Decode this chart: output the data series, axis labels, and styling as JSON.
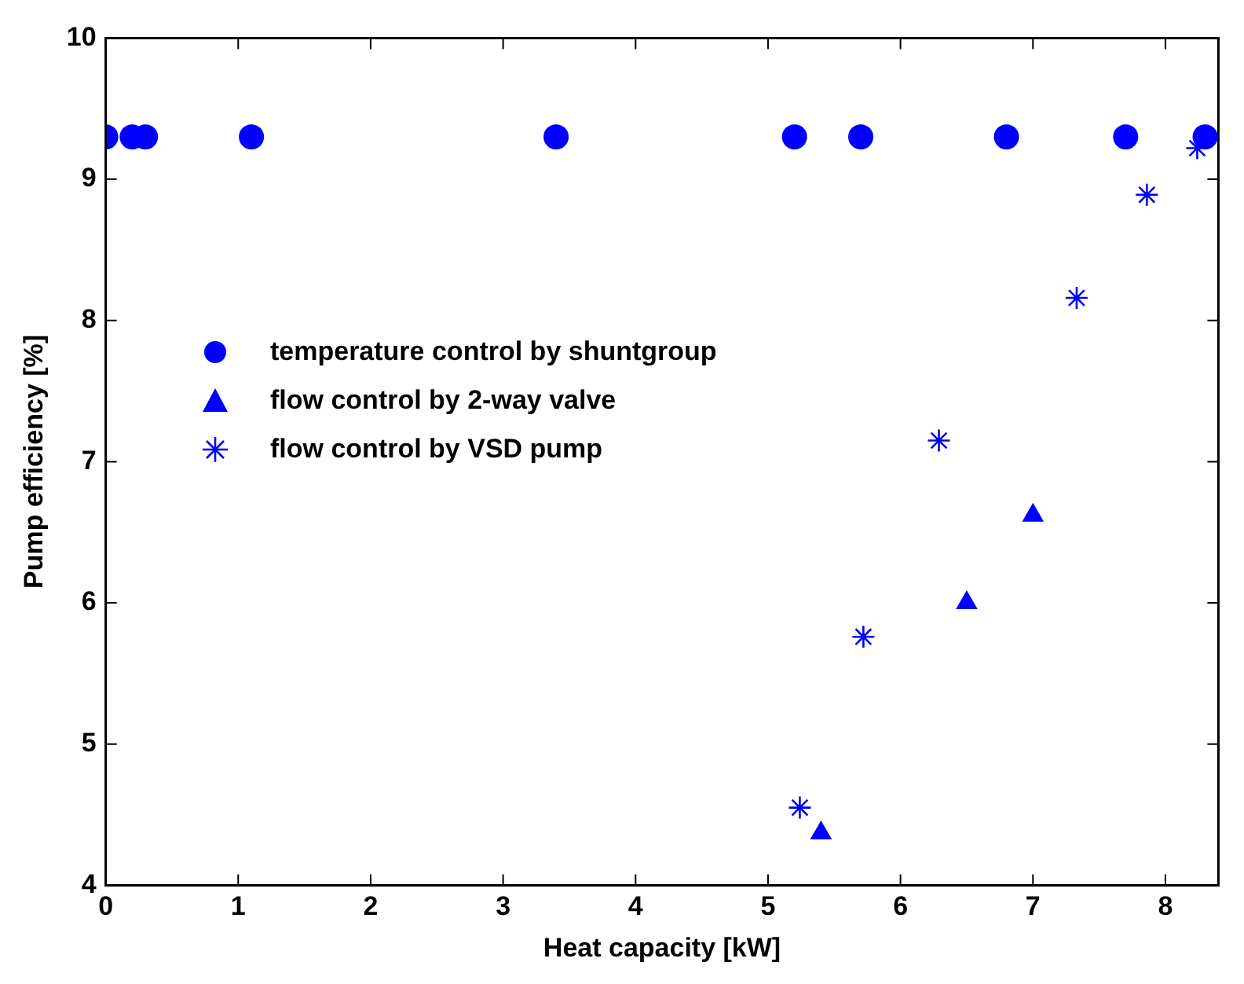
{
  "chart_data": {
    "type": "scatter",
    "xlabel": "Heat capacity [kW]",
    "ylabel": "Pump efficiency [%]",
    "xlim": [
      0,
      8.4
    ],
    "xticks": [
      0,
      1,
      2,
      3,
      4,
      5,
      6,
      7,
      8
    ],
    "ylim": [
      4,
      10
    ],
    "yticks": [
      4,
      5,
      6,
      7,
      8,
      9,
      10
    ],
    "grid": false,
    "legend": "left",
    "series": [
      {
        "name": "temperature control by shuntgroup",
        "color": "#0000ff",
        "marker": "circle",
        "x": [
          0,
          0.2,
          0.3,
          1.1,
          3.4,
          5.2,
          5.7,
          6.8,
          7.7,
          8.3
        ],
        "values": [
          9.3,
          9.3,
          9.3,
          9.3,
          9.3,
          9.3,
          9.3,
          9.3,
          9.3,
          9.3
        ]
      },
      {
        "name": "flow control by 2-way valve",
        "color": "#0000ff",
        "marker": "triangle",
        "x": [
          5.4,
          6.5,
          7.0
        ],
        "values": [
          4.37,
          6.0,
          6.62
        ]
      },
      {
        "name": "flow control by VSD pump",
        "color": "#0000ff",
        "marker": "cross",
        "x": [
          5.24,
          5.72,
          6.29,
          7.33,
          7.86,
          8.24
        ],
        "values": [
          4.55,
          5.76,
          7.15,
          8.16,
          8.89,
          9.22
        ]
      }
    ]
  }
}
